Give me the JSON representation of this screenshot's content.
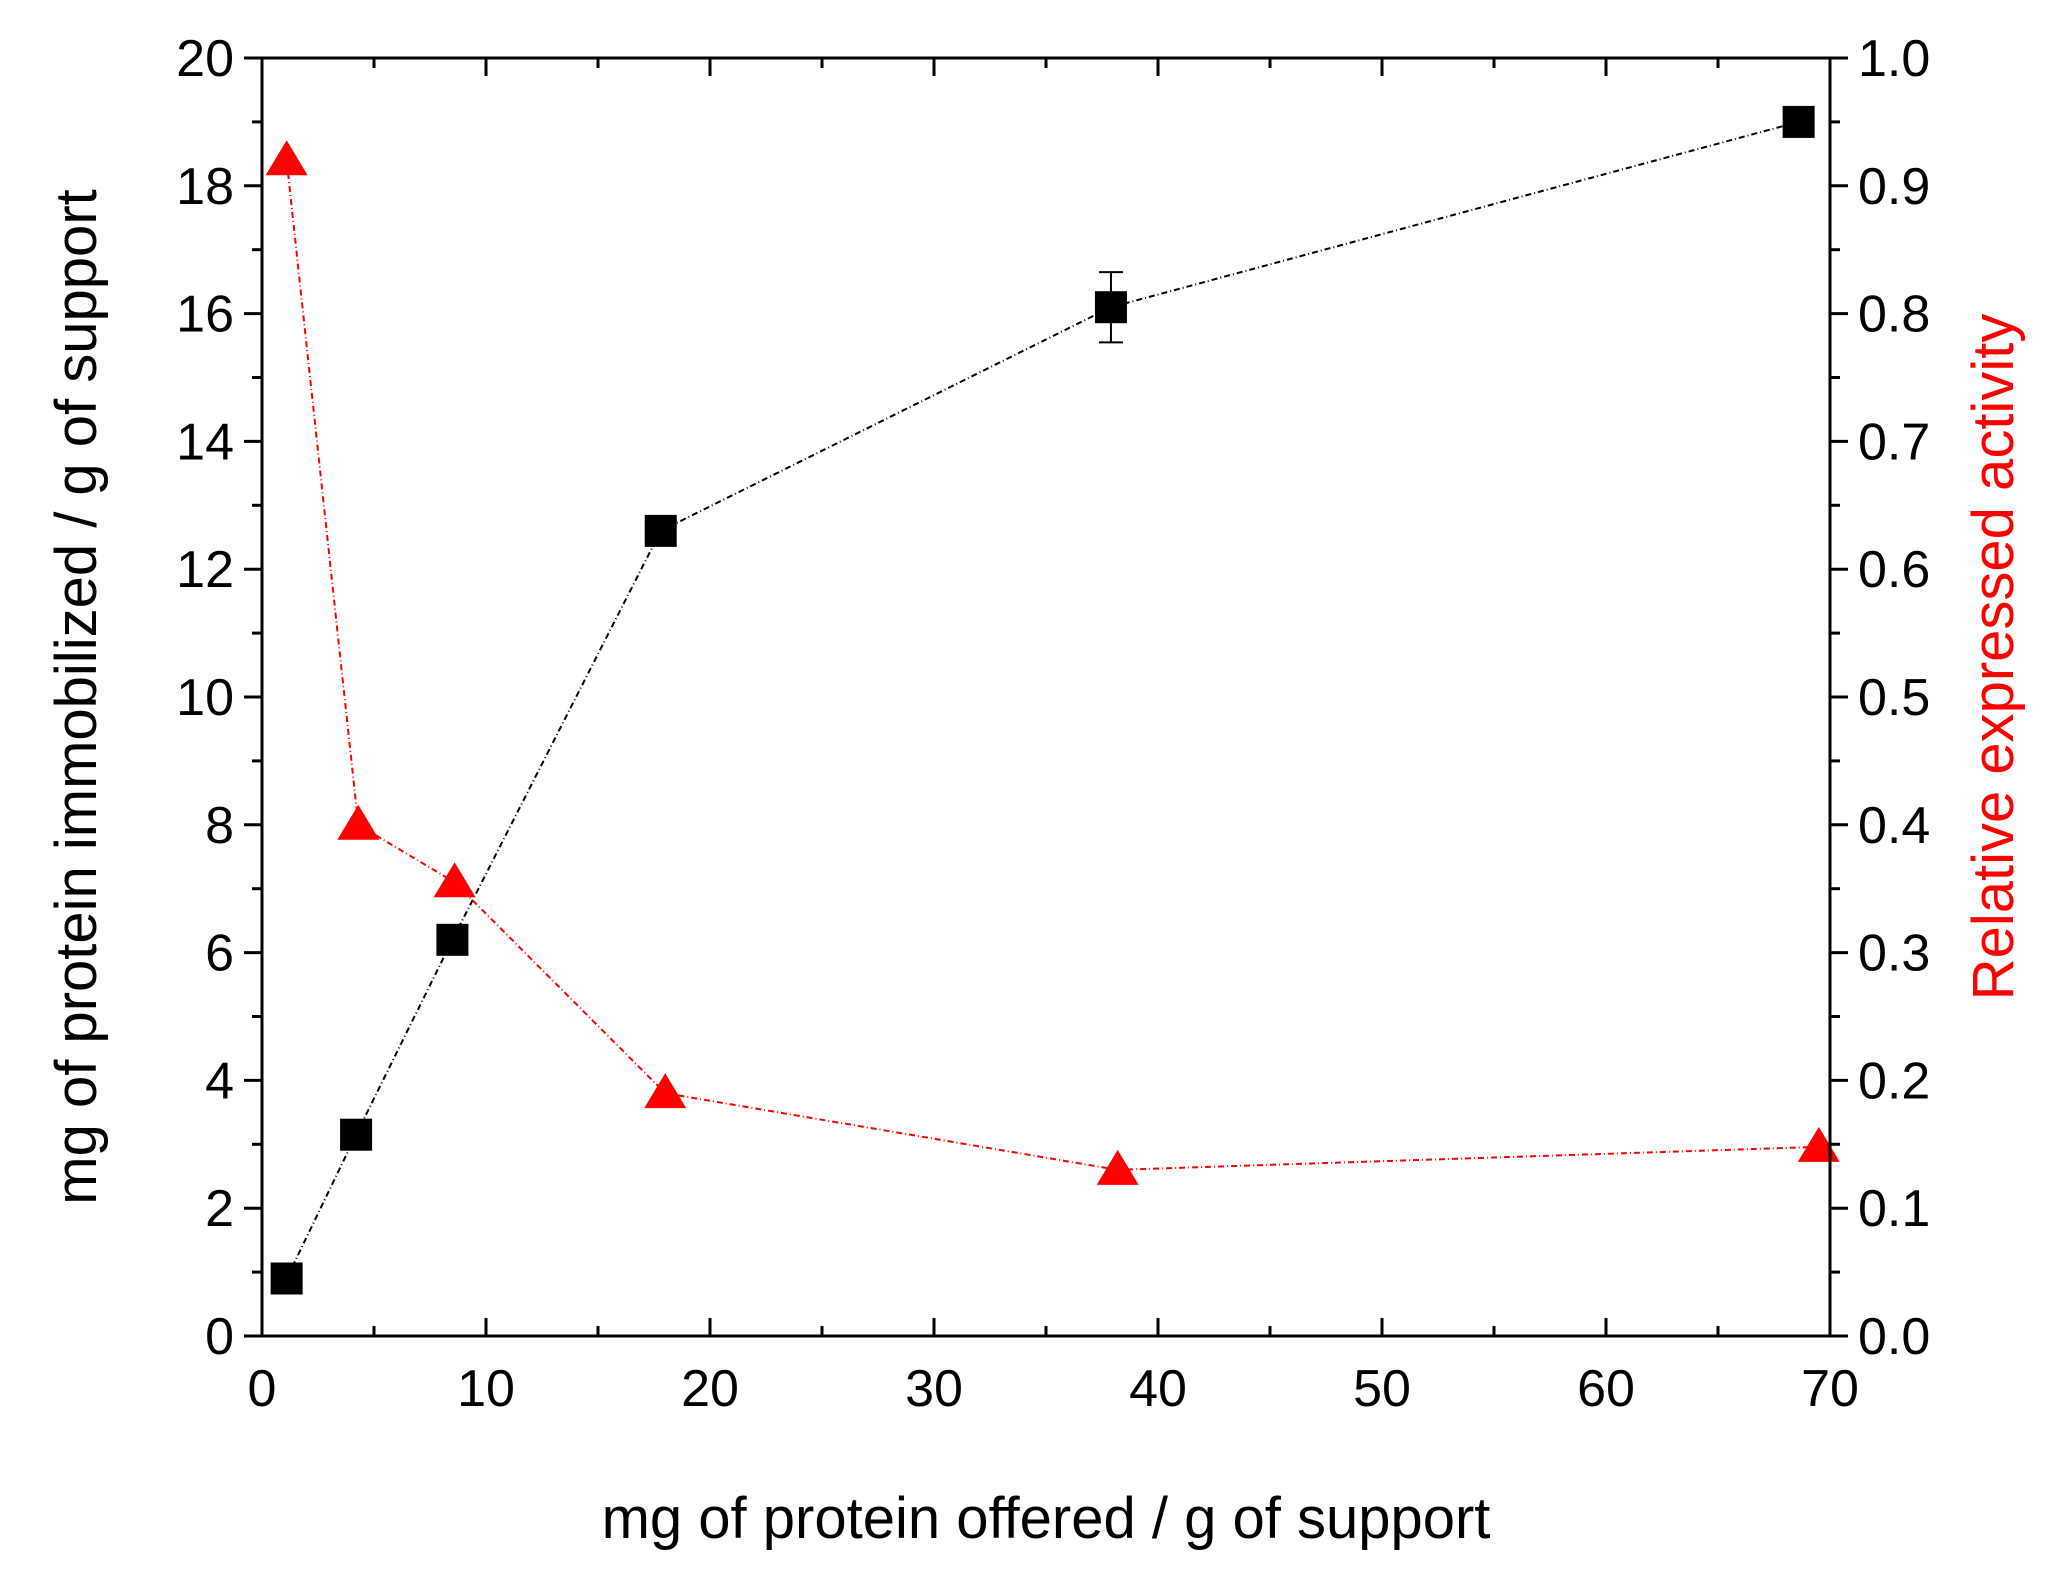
{
  "chart_data": {
    "type": "scatter",
    "title": "",
    "xlabel": "mg of protein offered / g of support",
    "ylabel": "mg of protein immobilized / g of support",
    "y2label": "Relative expressed activity",
    "xlim": [
      0,
      70
    ],
    "ylim": [
      0,
      20
    ],
    "y2lim": [
      0,
      1.0
    ],
    "grid": false,
    "legend": "none",
    "x_ticks": [
      "0",
      "10",
      "20",
      "30",
      "40",
      "50",
      "60",
      "70"
    ],
    "y_ticks": [
      "0",
      "2",
      "4",
      "6",
      "8",
      "10",
      "12",
      "14",
      "16",
      "18",
      "20"
    ],
    "y2_ticks": [
      "0.0",
      "0.1",
      "0.2",
      "0.3",
      "0.4",
      "0.5",
      "0.6",
      "0.7",
      "0.8",
      "0.9",
      "1.0"
    ],
    "series": [
      {
        "axis": "left",
        "marker": "square",
        "color": "#000000",
        "x": [
          1.1,
          4.2,
          8.5,
          17.8,
          37.9,
          68.6
        ],
        "y": [
          0.9,
          3.15,
          6.2,
          12.6,
          16.1,
          19.0
        ],
        "y_err": [
          0,
          0,
          0,
          0,
          0.55,
          0
        ]
      },
      {
        "axis": "right",
        "marker": "triangle",
        "color": "#ff0000",
        "x": [
          1.1,
          4.3,
          8.6,
          18.0,
          38.2,
          69.5
        ],
        "y": [
          0.92,
          0.4,
          0.355,
          0.19,
          0.13,
          0.148
        ]
      }
    ]
  }
}
